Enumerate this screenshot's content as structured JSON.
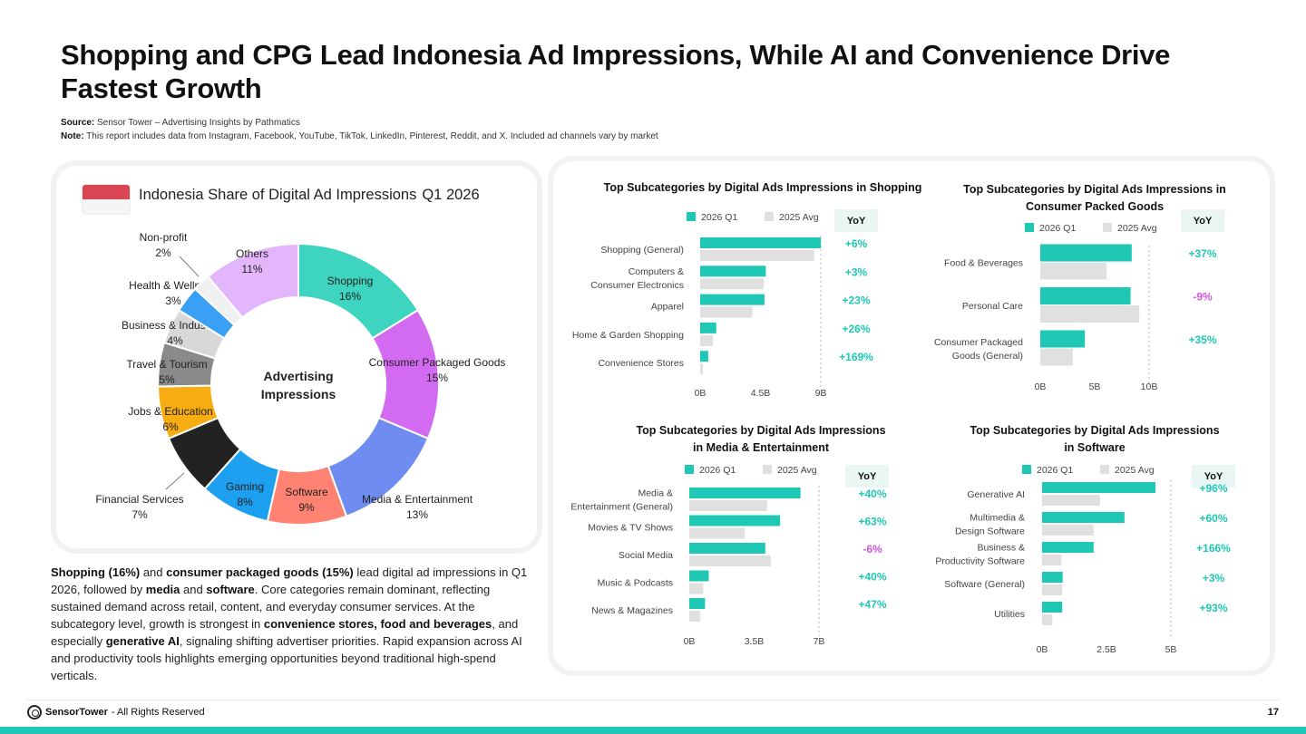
{
  "title": "Shopping and CPG Lead Indonesia Ad Impressions, While AI and Convenience Drive Fastest Growth",
  "source": {
    "label": "Source:",
    "text": "Sensor Tower – Advertising Insights by Pathmatics"
  },
  "note": {
    "label": "Note:",
    "text": "This report includes data from Instagram, Facebook, YouTube, TikTok, LinkedIn, Pinterest, Reddit, and X. Included ad channels vary by market"
  },
  "pie_title": "Indonesia Share of Digital Ad Impressions",
  "pie_period": "Q1 2026",
  "summary": {
    "p1": "Shopping (16%)",
    "p2": " and ",
    "p3": "consumer packaged goods (15%)",
    "p4": " lead digital ad impressions in Q1 2026, followed by ",
    "p5": "media",
    "p6": " and ",
    "p7": "software",
    "p8": ". Core categories remain dominant, reflecting sustained demand across retail, content, and everyday consumer services. At the subcategory level, growth is strongest in ",
    "p9": "convenience stores, food and beverages",
    "p10": ", and especially ",
    "p11": "generative AI",
    "p12": ", signaling shifting advertiser priorities. Rapid expansion across AI and productivity tools highlights emerging opportunities beyond traditional high-spend verticals."
  },
  "footer": {
    "brand_a": "Sensor",
    "brand_b": "Tower",
    "rights": " - All Rights Reserved",
    "page": "17"
  },
  "colors": {
    "accent": "#1fc8b5",
    "avg": "#e0e0e0",
    "pos": "#1fc8b5",
    "neg": "#cc55e0"
  },
  "chart_data": [
    {
      "type": "pie",
      "title": "Indonesia Share of Digital Ad Impressions",
      "center_label": [
        "Advertising",
        "Impressions"
      ],
      "slices": [
        {
          "label": "Shopping",
          "value": 16,
          "pct": "16%",
          "color": "#3dd5c0"
        },
        {
          "label": "Consumer Packaged Goods",
          "value": 15,
          "pct": "15%",
          "color": "#d36af2"
        },
        {
          "label": "Media & Entertainment",
          "value": 13,
          "pct": "13%",
          "color": "#6f8df0"
        },
        {
          "label": "Software",
          "value": 9,
          "pct": "9%",
          "color": "#ff8272"
        },
        {
          "label": "Gaming",
          "value": 8,
          "pct": "8%",
          "color": "#1ea0f0"
        },
        {
          "label": "Financial Services",
          "value": 7,
          "pct": "7%",
          "color": "#222222"
        },
        {
          "label": "Jobs & Education",
          "value": 6,
          "pct": "6%",
          "color": "#f7ac11"
        },
        {
          "label": "Travel & Tourism",
          "value": 5,
          "pct": "5%",
          "color": "#8a8a8a"
        },
        {
          "label": "Business & Industrials",
          "value": 4,
          "pct": "4%",
          "color": "#d8d8d8"
        },
        {
          "label": "Health & Wellness",
          "value": 3,
          "pct": "3%",
          "color": "#3aa0f5"
        },
        {
          "label": "Non-profit",
          "value": 2,
          "pct": "2%",
          "color": "#f0f0f0"
        },
        {
          "label": "Others",
          "value": 11,
          "pct": "11%",
          "color": "#e3b6fb"
        }
      ]
    },
    {
      "type": "bar",
      "title": [
        "Top Subcategories by Digital Ads Impressions in Shopping"
      ],
      "legend": [
        "2026 Q1",
        "2025 Avg"
      ],
      "yoy_label": "YoY",
      "ticks": [
        "0B",
        "4.5B",
        "9B"
      ],
      "xlim": [
        0,
        9
      ],
      "categories": [
        [
          "Shopping (General)"
        ],
        [
          "Computers &",
          "Consumer Electronics"
        ],
        [
          "Apparel"
        ],
        [
          "Home & Garden Shopping"
        ],
        [
          "Convenience Stores"
        ]
      ],
      "series": [
        {
          "name": "2026 Q1",
          "values": [
            9.0,
            4.9,
            4.8,
            1.2,
            0.6
          ]
        },
        {
          "name": "2025 Avg",
          "values": [
            8.5,
            4.75,
            3.9,
            0.95,
            0.2
          ]
        }
      ],
      "yoy": [
        "+6%",
        "+3%",
        "+23%",
        "+26%",
        "+169%"
      ]
    },
    {
      "type": "bar",
      "title": [
        "Top Subcategories by Digital Ads Impressions in",
        "Consumer Packed Goods"
      ],
      "legend": [
        "2026 Q1",
        "2025 Avg"
      ],
      "yoy_label": "YoY",
      "ticks": [
        "0B",
        "5B",
        "10B"
      ],
      "xlim": [
        0,
        10
      ],
      "categories": [
        [
          "Food & Beverages"
        ],
        [
          "Personal Care"
        ],
        [
          "Consumer Packaged",
          "Goods (General)"
        ]
      ],
      "series": [
        {
          "name": "2026 Q1",
          "values": [
            8.4,
            8.3,
            4.1
          ]
        },
        {
          "name": "2025 Avg",
          "values": [
            6.1,
            9.1,
            3.0
          ]
        }
      ],
      "yoy": [
        "+37%",
        "-9%",
        "+35%"
      ]
    },
    {
      "type": "bar",
      "title": [
        "Top Subcategories by Digital Ads Impressions",
        "in Media & Entertainment"
      ],
      "legend": [
        "2026 Q1",
        "2025 Avg"
      ],
      "yoy_label": "YoY",
      "ticks": [
        "0B",
        "3.5B",
        "7B"
      ],
      "xlim": [
        0,
        7
      ],
      "categories": [
        [
          "Media &",
          "Entertainment (General)"
        ],
        [
          "Movies & TV Shows"
        ],
        [
          "Social Media"
        ],
        [
          "Music & Podcasts"
        ],
        [
          "News & Magazines"
        ]
      ],
      "series": [
        {
          "name": "2026 Q1",
          "values": [
            6.0,
            4.9,
            4.1,
            1.05,
            0.85
          ]
        },
        {
          "name": "2025 Avg",
          "values": [
            4.2,
            3.0,
            4.4,
            0.75,
            0.58
          ]
        }
      ],
      "yoy": [
        "+40%",
        "+63%",
        "-6%",
        "+40%",
        "+47%"
      ]
    },
    {
      "type": "bar",
      "title": [
        "Top Subcategories by Digital Ads Impressions",
        "in Software"
      ],
      "legend": [
        "2026 Q1",
        "2025 Avg"
      ],
      "yoy_label": "YoY",
      "ticks": [
        "0B",
        "2.5B",
        "5B"
      ],
      "xlim": [
        0,
        5
      ],
      "categories": [
        [
          "Generative AI"
        ],
        [
          "Multimedia &",
          "Design Software"
        ],
        [
          "Business &",
          "Productivity Software"
        ],
        [
          "Software (General)"
        ],
        [
          "Utilities"
        ]
      ],
      "series": [
        {
          "name": "2026 Q1",
          "values": [
            4.4,
            3.2,
            2.0,
            0.8,
            0.78
          ]
        },
        {
          "name": "2025 Avg",
          "values": [
            2.25,
            2.0,
            0.75,
            0.78,
            0.4
          ]
        }
      ],
      "yoy": [
        "+96%",
        "+60%",
        "+166%",
        "+3%",
        "+93%"
      ]
    }
  ]
}
